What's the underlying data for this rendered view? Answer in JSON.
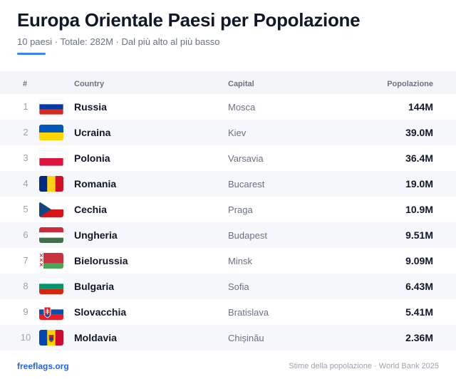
{
  "header": {
    "title": "Europa Orientale Paesi per Popolazione",
    "subtitle": "10 paesi · Totale: 282M · Dal più alto al più basso"
  },
  "table": {
    "columns": {
      "num": "#",
      "country": "Country",
      "capital": "Capital",
      "population": "Popolazione"
    },
    "rows": [
      {
        "rank": "1",
        "flag": "russia-flag-icon",
        "country": "Russia",
        "capital": "Mosca",
        "population": "144M"
      },
      {
        "rank": "2",
        "flag": "ukraine-flag-icon",
        "country": "Ucraina",
        "capital": "Kiev",
        "population": "39.0M"
      },
      {
        "rank": "3",
        "flag": "poland-flag-icon",
        "country": "Polonia",
        "capital": "Varsavia",
        "population": "36.4M"
      },
      {
        "rank": "4",
        "flag": "romania-flag-icon",
        "country": "Romania",
        "capital": "Bucarest",
        "population": "19.0M"
      },
      {
        "rank": "5",
        "flag": "czechia-flag-icon",
        "country": "Cechia",
        "capital": "Praga",
        "population": "10.9M"
      },
      {
        "rank": "6",
        "flag": "hungary-flag-icon",
        "country": "Ungheria",
        "capital": "Budapest",
        "population": "9.51M"
      },
      {
        "rank": "7",
        "flag": "belarus-flag-icon",
        "country": "Bielorussia",
        "capital": "Minsk",
        "population": "9.09M"
      },
      {
        "rank": "8",
        "flag": "bulgaria-flag-icon",
        "country": "Bulgaria",
        "capital": "Sofia",
        "population": "6.43M"
      },
      {
        "rank": "9",
        "flag": "slovakia-flag-icon",
        "country": "Slovacchia",
        "capital": "Bratislava",
        "population": "5.41M"
      },
      {
        "rank": "10",
        "flag": "moldova-flag-icon",
        "country": "Moldavia",
        "capital": "Chișinău",
        "population": "2.36M"
      }
    ]
  },
  "footer": {
    "brand": "freeflags.org",
    "source": "Stime della popolazione · World Bank 2025"
  },
  "colors": {
    "accent": "#3b82f6",
    "brand": "#2563eb"
  }
}
